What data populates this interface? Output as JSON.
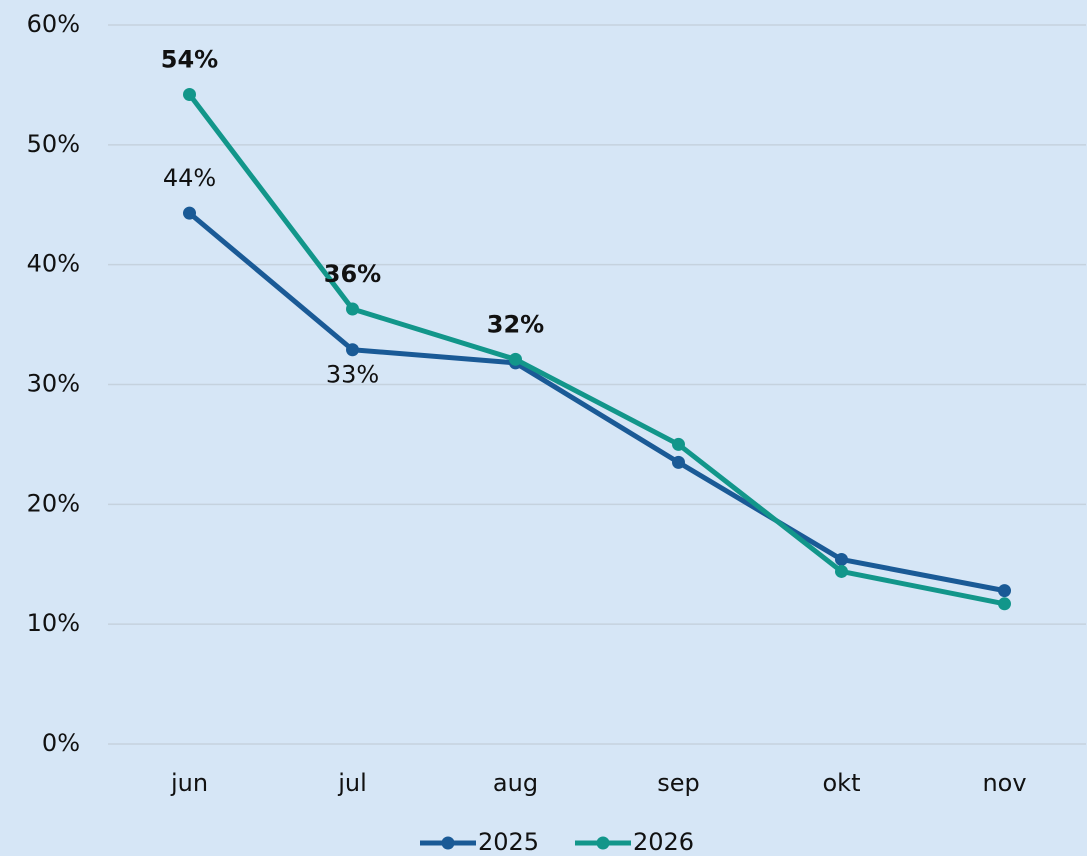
{
  "chart_data": {
    "type": "line",
    "categories": [
      "jun",
      "jul",
      "aug",
      "sep",
      "okt",
      "nov"
    ],
    "series": [
      {
        "name": "2025",
        "color": "#1a5a96",
        "values": [
          44.3,
          32.9,
          31.8,
          23.5,
          15.4,
          12.8
        ],
        "value_labels": [
          "44%",
          "33%",
          null,
          null,
          null,
          null
        ]
      },
      {
        "name": "2026",
        "color": "#12968a",
        "values": [
          54.2,
          36.3,
          32.1,
          25.0,
          14.4,
          11.7
        ],
        "value_labels": [
          "54%",
          "36%",
          "32%",
          null,
          null,
          null
        ]
      }
    ],
    "ylim": [
      0,
      60
    ],
    "yticks": [
      {
        "value": 0,
        "label": "0%"
      },
      {
        "value": 10,
        "label": "10%"
      },
      {
        "value": 20,
        "label": "20%"
      },
      {
        "value": 30,
        "label": "30%"
      },
      {
        "value": 40,
        "label": "40%"
      },
      {
        "value": 50,
        "label": "50%"
      },
      {
        "value": 60,
        "label": "60%"
      }
    ],
    "grid": true,
    "legend": "bottom"
  }
}
